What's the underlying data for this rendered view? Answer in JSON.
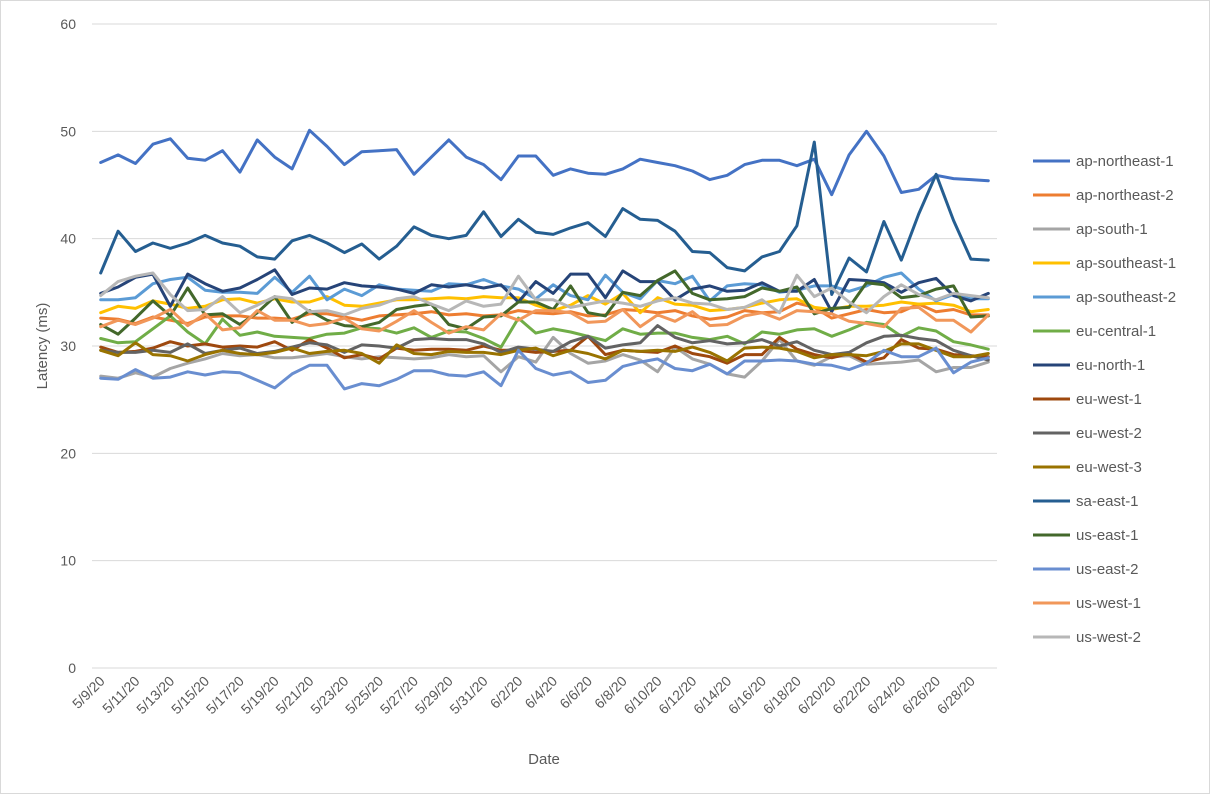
{
  "chart_data": {
    "type": "line",
    "title": "",
    "xlabel": "Date",
    "ylabel": "Latency (ms)",
    "ylim": [
      0,
      60
    ],
    "yticks": [
      0,
      10,
      20,
      30,
      40,
      50,
      60
    ],
    "grid": "horizontal",
    "legend_position": "right",
    "x": [
      "5/9/20",
      "5/10/20",
      "5/11/20",
      "5/12/20",
      "5/13/20",
      "5/14/20",
      "5/15/20",
      "5/16/20",
      "5/17/20",
      "5/18/20",
      "5/19/20",
      "5/20/20",
      "5/21/20",
      "5/22/20",
      "5/23/20",
      "5/24/20",
      "5/25/20",
      "5/26/20",
      "5/27/20",
      "5/28/20",
      "5/29/20",
      "5/30/20",
      "5/31/20",
      "6/1/20",
      "6/2/20",
      "6/3/20",
      "6/4/20",
      "6/5/20",
      "6/6/20",
      "6/7/20",
      "6/8/20",
      "6/9/20",
      "6/10/20",
      "6/11/20",
      "6/12/20",
      "6/13/20",
      "6/14/20",
      "6/15/20",
      "6/16/20",
      "6/17/20",
      "6/18/20",
      "6/19/20",
      "6/20/20",
      "6/21/20",
      "6/22/20",
      "6/23/20",
      "6/24/20",
      "6/25/20",
      "6/26/20",
      "6/27/20",
      "6/28/20",
      "6/29/20"
    ],
    "xtick_labels": [
      "5/9/20",
      "5/11/20",
      "5/13/20",
      "5/15/20",
      "5/17/20",
      "5/19/20",
      "5/21/20",
      "5/23/20",
      "5/25/20",
      "5/27/20",
      "5/29/20",
      "5/31/20",
      "6/2/20",
      "6/4/20",
      "6/6/20",
      "6/8/20",
      "6/10/20",
      "6/12/20",
      "6/14/20",
      "6/16/20",
      "6/18/20",
      "6/20/20",
      "6/22/20",
      "6/24/20",
      "6/26/20",
      "6/28/20"
    ],
    "series": [
      {
        "name": "ap-northeast-1",
        "color": "#4472C4",
        "values": [
          47.1,
          47.8,
          47.0,
          48.8,
          49.3,
          47.5,
          47.3,
          48.2,
          46.2,
          49.2,
          47.6,
          46.5,
          50.1,
          48.6,
          46.9,
          48.1,
          48.2,
          48.3,
          46.0,
          47.6,
          49.2,
          47.6,
          46.9,
          45.5,
          47.7,
          47.7,
          45.9,
          46.5,
          46.1,
          46.0,
          46.5,
          47.4,
          47.1,
          46.8,
          46.3,
          45.5,
          45.9,
          46.9,
          47.3,
          47.3,
          46.8,
          47.4,
          44.1,
          47.8,
          50.0,
          47.7,
          44.3,
          44.6,
          45.9,
          45.6,
          45.5,
          45.4
        ]
      },
      {
        "name": "ap-northeast-2",
        "color": "#ED7D31",
        "values": [
          32.6,
          32.5,
          32.1,
          32.7,
          32.4,
          32.1,
          32.7,
          32.8,
          32.8,
          32.6,
          32.6,
          32.5,
          33.0,
          33.0,
          32.7,
          32.4,
          32.8,
          32.9,
          33.0,
          33.2,
          32.9,
          33.0,
          32.8,
          32.9,
          33.3,
          33.1,
          33.0,
          33.2,
          32.8,
          32.9,
          33.4,
          33.3,
          33.1,
          33.3,
          32.8,
          32.5,
          32.7,
          33.3,
          33.1,
          33.2,
          34.0,
          33.6,
          32.6,
          33.0,
          33.4,
          33.1,
          33.2,
          33.9,
          33.2,
          33.4,
          32.9,
          32.9
        ]
      },
      {
        "name": "ap-south-1",
        "color": "#A5A5A5",
        "values": [
          27.2,
          27.0,
          27.5,
          27.1,
          27.9,
          28.4,
          28.8,
          29.3,
          29.1,
          29.2,
          28.9,
          28.9,
          29.1,
          29.3,
          29.0,
          28.8,
          29.0,
          28.9,
          28.8,
          28.9,
          29.2,
          29.0,
          29.1,
          27.6,
          29.0,
          28.5,
          30.8,
          29.3,
          28.4,
          28.6,
          29.2,
          28.7,
          27.6,
          29.9,
          28.8,
          28.3,
          27.4,
          27.1,
          28.6,
          30.6,
          28.6,
          28.2,
          29.0,
          29.1,
          28.3,
          28.4,
          28.5,
          28.7,
          27.6,
          28.0,
          28.0,
          28.5
        ]
      },
      {
        "name": "ap-southeast-1",
        "color": "#FFC000",
        "values": [
          33.1,
          33.7,
          33.5,
          34.2,
          33.9,
          33.5,
          33.7,
          34.3,
          34.4,
          34.0,
          34.4,
          34.1,
          34.1,
          34.6,
          33.8,
          33.7,
          34.0,
          34.3,
          34.3,
          34.4,
          34.5,
          34.4,
          34.6,
          34.5,
          34.5,
          33.8,
          33.3,
          33.8,
          34.7,
          33.9,
          34.9,
          33.1,
          34.5,
          33.9,
          33.8,
          33.3,
          33.4,
          33.6,
          34.0,
          34.3,
          34.4,
          33.6,
          33.4,
          33.7,
          33.7,
          33.8,
          34.1,
          33.9,
          34.0,
          33.8,
          33.2,
          33.4
        ]
      },
      {
        "name": "ap-southeast-2",
        "color": "#5B9BD5",
        "values": [
          34.3,
          34.3,
          34.5,
          35.8,
          36.2,
          36.4,
          35.2,
          35.0,
          35.0,
          34.9,
          36.4,
          35.0,
          36.5,
          34.3,
          35.3,
          34.7,
          35.7,
          35.3,
          35.2,
          35.1,
          35.8,
          35.7,
          36.2,
          35.6,
          35.3,
          34.4,
          35.7,
          34.7,
          34.3,
          36.6,
          35.0,
          34.4,
          36.1,
          35.8,
          36.5,
          34.2,
          35.6,
          35.8,
          35.7,
          35.0,
          35.2,
          35.6,
          35.6,
          35.1,
          35.6,
          36.4,
          36.8,
          35.3,
          34.2,
          34.8,
          34.4,
          34.4
        ]
      },
      {
        "name": "eu-central-1",
        "color": "#70AD47",
        "values": [
          30.7,
          30.3,
          30.4,
          31.6,
          32.8,
          31.3,
          30.2,
          32.5,
          31.0,
          31.3,
          30.9,
          30.8,
          30.7,
          31.1,
          31.2,
          31.7,
          31.6,
          31.2,
          31.7,
          30.8,
          31.4,
          31.3,
          30.7,
          29.9,
          32.6,
          31.2,
          31.6,
          31.3,
          30.9,
          30.5,
          31.6,
          31.1,
          31.2,
          31.2,
          30.8,
          30.6,
          30.9,
          30.2,
          31.3,
          31.1,
          31.5,
          31.6,
          30.9,
          31.5,
          32.2,
          32.0,
          30.9,
          31.7,
          31.4,
          30.4,
          30.1,
          29.7
        ]
      },
      {
        "name": "eu-north-1",
        "color": "#264478",
        "values": [
          34.9,
          35.5,
          36.4,
          36.7,
          33.7,
          36.7,
          35.8,
          35.1,
          35.4,
          36.2,
          37.1,
          34.8,
          35.4,
          35.3,
          35.9,
          35.6,
          35.5,
          35.3,
          34.9,
          35.7,
          35.5,
          35.7,
          35.4,
          35.7,
          34.1,
          36.0,
          34.9,
          36.7,
          36.7,
          34.5,
          37.0,
          36.0,
          36.0,
          34.3,
          35.3,
          35.6,
          35.1,
          35.2,
          35.9,
          35.1,
          35.1,
          36.2,
          33.2,
          36.2,
          36.1,
          35.9,
          35.0,
          35.9,
          36.3,
          34.7,
          34.2,
          34.9
        ]
      },
      {
        "name": "eu-west-1",
        "color": "#9E480E",
        "values": [
          29.9,
          29.4,
          29.5,
          29.8,
          30.4,
          30.0,
          30.2,
          29.9,
          30.0,
          29.9,
          30.4,
          29.6,
          30.6,
          29.8,
          28.9,
          29.2,
          28.8,
          29.8,
          29.6,
          29.7,
          29.7,
          29.6,
          30.0,
          29.6,
          29.6,
          29.4,
          29.5,
          29.6,
          30.9,
          29.2,
          29.6,
          29.5,
          29.4,
          30.0,
          29.3,
          29.0,
          28.4,
          29.2,
          29.2,
          30.8,
          29.7,
          29.2,
          28.9,
          29.3,
          28.5,
          28.9,
          30.6,
          29.8,
          29.7,
          29.2,
          29.1,
          29.0
        ]
      },
      {
        "name": "eu-west-2",
        "color": "#636363",
        "values": [
          29.6,
          29.4,
          29.4,
          29.6,
          29.4,
          30.2,
          29.3,
          29.6,
          29.8,
          29.3,
          29.5,
          29.9,
          30.3,
          30.1,
          29.4,
          30.1,
          30.0,
          29.8,
          30.6,
          30.7,
          30.6,
          30.6,
          30.2,
          29.4,
          29.9,
          29.7,
          29.5,
          30.4,
          30.9,
          29.8,
          30.1,
          30.3,
          31.9,
          30.8,
          30.3,
          30.5,
          30.2,
          30.3,
          30.6,
          30.0,
          30.4,
          29.6,
          29.2,
          29.4,
          30.3,
          30.9,
          31.0,
          30.7,
          30.5,
          29.6,
          29.1,
          28.7
        ]
      },
      {
        "name": "eu-west-3",
        "color": "#997300",
        "values": [
          29.6,
          29.1,
          30.3,
          29.2,
          29.1,
          28.6,
          29.2,
          29.6,
          29.3,
          29.2,
          29.4,
          29.8,
          29.3,
          29.5,
          29.6,
          29.3,
          28.4,
          30.1,
          29.3,
          29.2,
          29.5,
          29.4,
          29.4,
          29.2,
          29.6,
          29.8,
          29.1,
          29.6,
          29.3,
          28.8,
          29.6,
          29.5,
          29.6,
          29.5,
          29.9,
          29.4,
          28.6,
          29.8,
          29.9,
          29.8,
          29.5,
          28.9,
          29.2,
          29.2,
          29.1,
          29.5,
          30.2,
          30.2,
          29.6,
          29.0,
          29.0,
          29.3
        ]
      },
      {
        "name": "sa-east-1",
        "color": "#255E91",
        "values": [
          36.8,
          40.7,
          38.8,
          39.6,
          39.1,
          39.6,
          40.3,
          39.6,
          39.3,
          38.3,
          38.1,
          39.8,
          40.3,
          39.6,
          38.7,
          39.5,
          38.1,
          39.3,
          41.1,
          40.3,
          40.0,
          40.3,
          42.5,
          40.2,
          41.8,
          40.6,
          40.4,
          41.0,
          41.5,
          40.2,
          42.8,
          41.8,
          41.7,
          40.7,
          38.8,
          38.7,
          37.3,
          37.0,
          38.3,
          38.8,
          41.2,
          49.0,
          34.8,
          38.2,
          36.9,
          41.6,
          38.0,
          42.3,
          46.0,
          41.7,
          38.1,
          38.0
        ]
      },
      {
        "name": "us-east-1",
        "color": "#43682B",
        "values": [
          32.0,
          31.1,
          32.6,
          34.2,
          32.8,
          35.4,
          32.9,
          33.0,
          32.0,
          33.1,
          34.6,
          32.2,
          33.3,
          32.4,
          31.9,
          31.8,
          32.2,
          33.4,
          33.7,
          33.9,
          32.0,
          31.6,
          32.7,
          32.8,
          34.1,
          34.1,
          33.4,
          35.6,
          33.1,
          32.8,
          35.0,
          34.7,
          36.1,
          37.0,
          34.9,
          34.3,
          34.4,
          34.6,
          35.4,
          35.1,
          35.5,
          33.0,
          33.5,
          33.6,
          35.9,
          35.7,
          34.5,
          34.7,
          35.3,
          35.6,
          32.7,
          32.8
        ]
      },
      {
        "name": "us-east-2",
        "color": "#698ED0",
        "values": [
          27.0,
          26.9,
          27.8,
          27.0,
          27.1,
          27.6,
          27.3,
          27.6,
          27.5,
          26.8,
          26.1,
          27.4,
          28.2,
          28.2,
          26.0,
          26.5,
          26.3,
          26.9,
          27.7,
          27.7,
          27.3,
          27.2,
          27.6,
          26.3,
          29.6,
          27.9,
          27.3,
          27.6,
          26.6,
          26.8,
          28.1,
          28.5,
          28.8,
          27.9,
          27.7,
          28.3,
          27.4,
          28.6,
          28.6,
          28.7,
          28.6,
          28.3,
          28.2,
          27.8,
          28.4,
          29.6,
          29.0,
          29.0,
          29.8,
          27.5,
          28.5,
          28.9
        ]
      },
      {
        "name": "us-west-1",
        "color": "#F1975A",
        "values": [
          31.8,
          32.4,
          32.0,
          32.6,
          33.4,
          31.9,
          33.0,
          31.5,
          31.7,
          33.3,
          32.4,
          32.4,
          31.9,
          32.1,
          32.6,
          31.6,
          31.4,
          32.3,
          33.3,
          32.2,
          31.2,
          31.8,
          31.5,
          33.0,
          32.4,
          33.3,
          33.3,
          33.1,
          32.2,
          32.3,
          33.4,
          31.8,
          32.9,
          32.3,
          33.2,
          31.9,
          32.0,
          32.8,
          33.1,
          32.5,
          33.3,
          33.2,
          33.0,
          32.3,
          32.1,
          31.8,
          33.5,
          33.6,
          32.4,
          32.4,
          31.3,
          32.9
        ]
      },
      {
        "name": "us-west-2",
        "color": "#B7B7B7",
        "values": [
          34.7,
          36.0,
          36.5,
          36.8,
          34.8,
          33.3,
          33.4,
          34.6,
          33.1,
          33.8,
          34.6,
          34.4,
          33.2,
          33.3,
          32.9,
          33.5,
          33.8,
          34.4,
          34.6,
          33.9,
          33.3,
          34.2,
          33.7,
          33.9,
          36.5,
          34.3,
          34.3,
          33.6,
          33.9,
          34.2,
          34.0,
          33.7,
          34.2,
          34.5,
          34.0,
          33.9,
          33.4,
          33.6,
          34.3,
          33.1,
          36.6,
          34.6,
          35.4,
          34.1,
          33.1,
          34.6,
          35.7,
          34.8,
          34.3,
          34.9,
          34.7,
          34.5
        ]
      }
    ]
  }
}
